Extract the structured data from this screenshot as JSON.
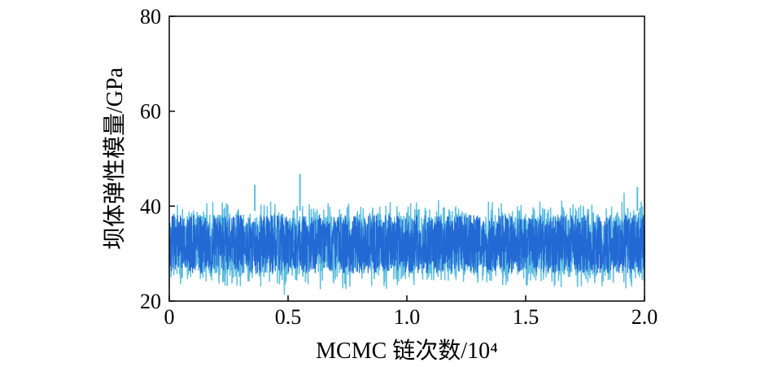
{
  "chart_data": {
    "type": "line",
    "title": "",
    "xlabel": "MCMC 链次数/10⁴",
    "ylabel": "坝体弹性模量/GPa",
    "xlim": [
      0,
      2.0
    ],
    "ylim": [
      20,
      80
    ],
    "xticks": [
      "0",
      "0.5",
      "1.0",
      "1.5",
      "2.0"
    ],
    "xtick_values": [
      0,
      0.5,
      1.0,
      1.5,
      2.0
    ],
    "yticks": [
      "20",
      "40",
      "60",
      "80"
    ],
    "ytick_values": [
      20,
      40,
      60,
      80
    ],
    "grid": false,
    "legend": "none",
    "series": [
      {
        "color": "#5bbde0",
        "trace_summary": {
          "center": 32,
          "upper_envelope": 39,
          "lower_envelope": 25,
          "max": 45.5,
          "min": 21.5
        },
        "x": [
          0,
          0.1,
          0.2,
          0.3,
          0.36,
          0.4,
          0.5,
          0.55,
          0.6,
          0.7,
          0.8,
          0.9,
          1.0,
          1.1,
          1.2,
          1.3,
          1.4,
          1.5,
          1.6,
          1.7,
          1.8,
          1.9,
          1.97,
          2.0
        ],
        "values": [
          31.5,
          33.2,
          30.8,
          32.4,
          44.5,
          31.0,
          30.5,
          46.8,
          32.5,
          31.8,
          30.9,
          32.7,
          31.2,
          33.0,
          30.6,
          32.1,
          31.7,
          30.8,
          32.9,
          31.4,
          32.2,
          30.9,
          44.0,
          31.5
        ]
      },
      {
        "color": "#2468d4",
        "trace_summary": {
          "center": 32,
          "upper_envelope": 38,
          "lower_envelope": 26
        }
      }
    ]
  }
}
